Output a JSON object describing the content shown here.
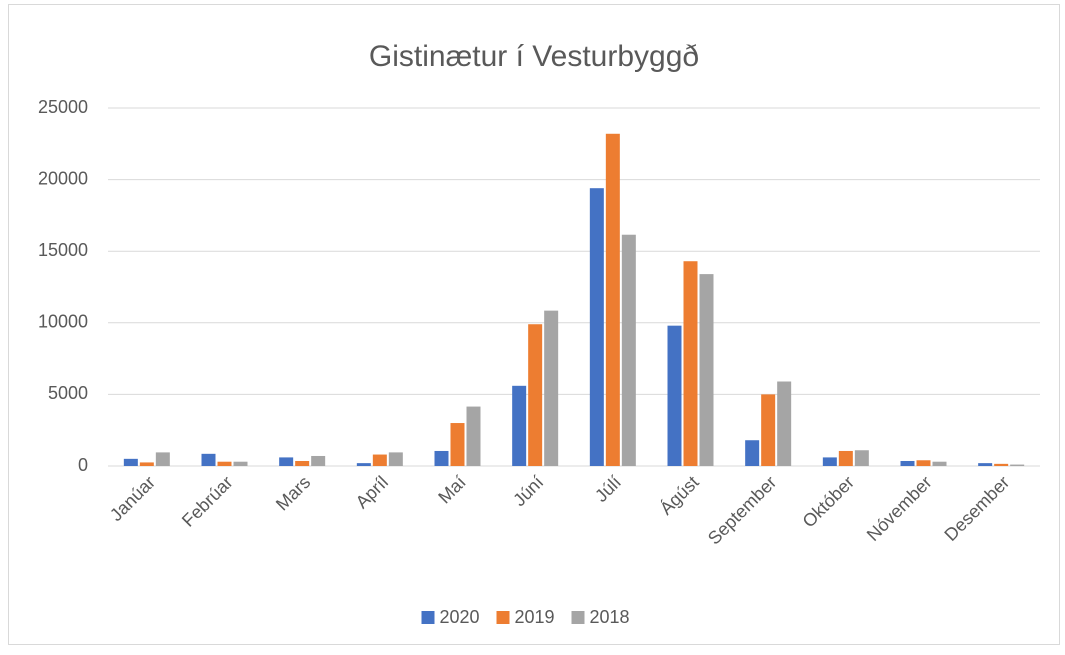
{
  "chart_data": {
    "type": "bar",
    "title": "Gistinætur í Vesturbyggð",
    "categories": [
      "Janúar",
      "Febrúar",
      "Mars",
      "Apríl",
      "Maí",
      "Júní",
      "Júlí",
      "Ágúst",
      "September",
      "Október",
      "Nóvember",
      "Desember"
    ],
    "series": [
      {
        "name": "2020",
        "color": "#4472c4",
        "values": [
          500,
          850,
          600,
          200,
          1050,
          5600,
          19400,
          9800,
          1800,
          600,
          350,
          200
        ]
      },
      {
        "name": "2019",
        "color": "#ed7d31",
        "values": [
          250,
          300,
          350,
          800,
          3000,
          9900,
          23200,
          14300,
          5000,
          1050,
          400,
          150
        ]
      },
      {
        "name": "2018",
        "color": "#a5a5a5",
        "values": [
          950,
          300,
          700,
          950,
          4150,
          10850,
          16150,
          13400,
          5900,
          1100,
          300,
          100
        ]
      }
    ],
    "ylim": [
      0,
      25000
    ],
    "yticks": [
      0,
      5000,
      10000,
      15000,
      20000,
      25000
    ],
    "grid": true,
    "legend": "bottom"
  }
}
